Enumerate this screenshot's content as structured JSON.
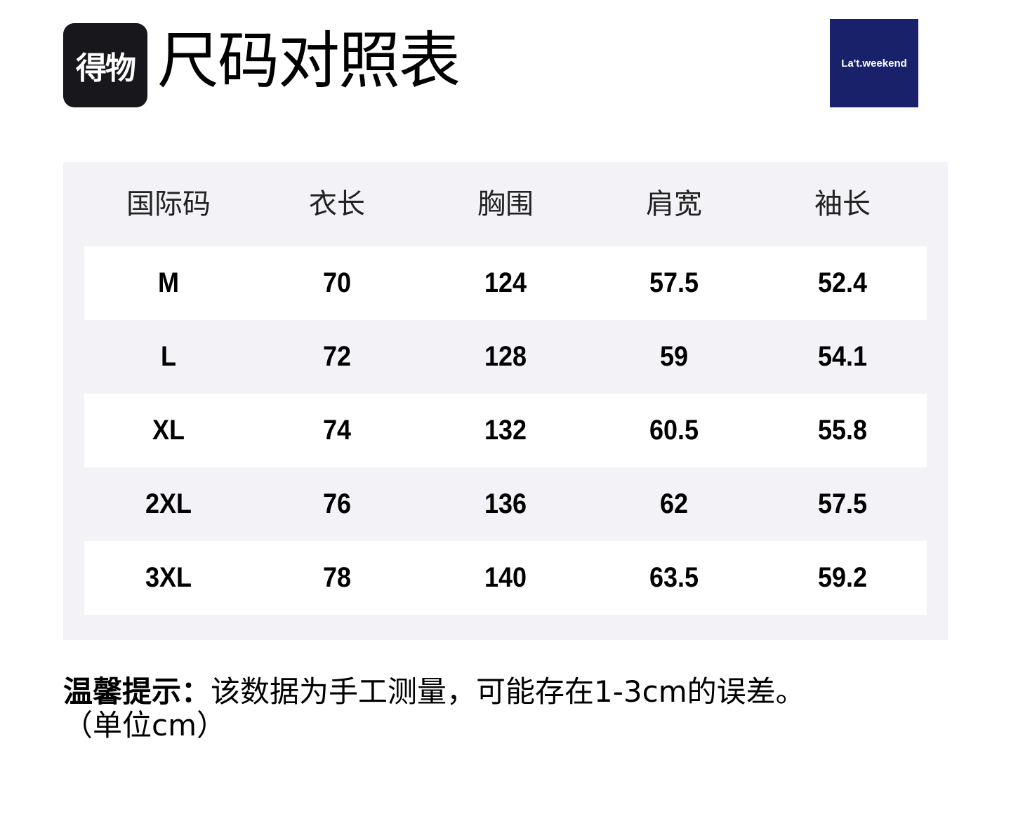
{
  "app_logo_text": "得物",
  "title": "尺码对照表",
  "brand_logo_text": "La't.weekend",
  "table": {
    "headers": [
      "国际码",
      "衣长",
      "胸围",
      "肩宽",
      "袖长"
    ],
    "rows": [
      [
        "M",
        "70",
        "124",
        "57.5",
        "52.4"
      ],
      [
        "L",
        "72",
        "128",
        "59",
        "54.1"
      ],
      [
        "XL",
        "74",
        "132",
        "60.5",
        "55.8"
      ],
      [
        "2XL",
        "76",
        "136",
        "62",
        "57.5"
      ],
      [
        "3XL",
        "78",
        "140",
        "63.5",
        "59.2"
      ]
    ]
  },
  "note": {
    "label": "温馨提示：",
    "text": "该数据为手工测量，可能存在1-3cm的误差。",
    "unit": "（单位cm）"
  },
  "colors": {
    "panel": "#f3f3f7",
    "brand": "#1a216b",
    "app_logo": "#18181c"
  }
}
